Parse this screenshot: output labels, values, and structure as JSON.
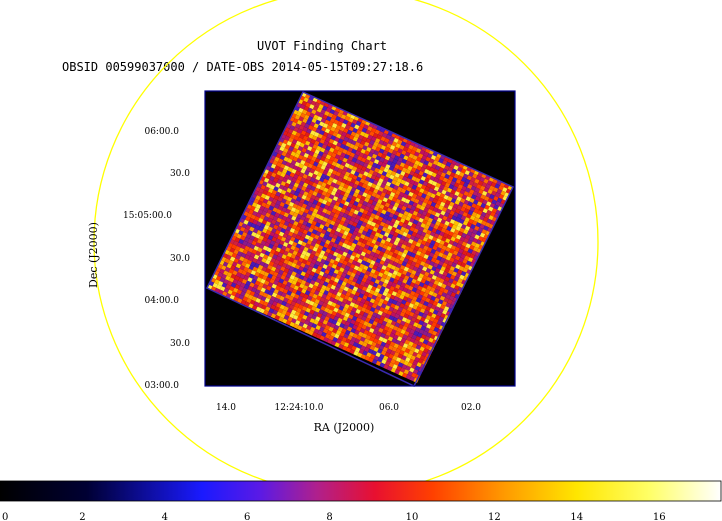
{
  "header": {
    "title": "UVOT Finding Chart",
    "subtitle": "OBSID 00599037000 / DATE-OBS 2014-05-15T09:27:18.6"
  },
  "axes": {
    "xlabel": "RA (J2000)",
    "ylabel": "Dec (J2000)",
    "x_ticks": [
      "14.0",
      "12:24:10.0",
      "06.0",
      "02.0"
    ],
    "y_ticks": [
      "06:00.0",
      "30.0",
      "15:05:00.0",
      "30.0",
      "04:00.0",
      "30.0",
      "03:00.0"
    ]
  },
  "colorbar": {
    "ticks": [
      "0",
      "2",
      "4",
      "6",
      "8",
      "10",
      "12",
      "14",
      "16"
    ],
    "min": 0,
    "max": 17.5
  },
  "colors": {
    "frame": "#00008b",
    "circle": "#ffff00",
    "background": "#000000"
  }
}
